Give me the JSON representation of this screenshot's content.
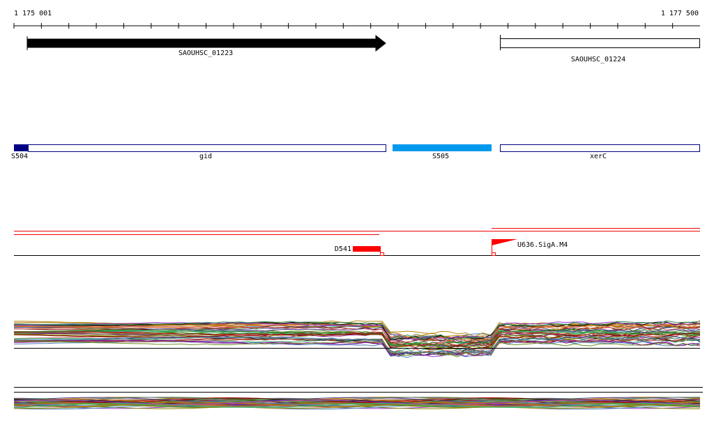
{
  "ruler": {
    "start_label": "1 175 001",
    "end_label": "1 177 500"
  },
  "genes": [
    {
      "label": "SAOUHSC_01223"
    },
    {
      "label": "SAOUHSC_01224"
    }
  ],
  "segments": [
    {
      "label": "S504"
    },
    {
      "label": "gid"
    },
    {
      "label": "S505"
    },
    {
      "label": "xerC"
    }
  ],
  "features": [
    {
      "label": "D541"
    },
    {
      "label": "U636.SigA.M4"
    }
  ]
}
